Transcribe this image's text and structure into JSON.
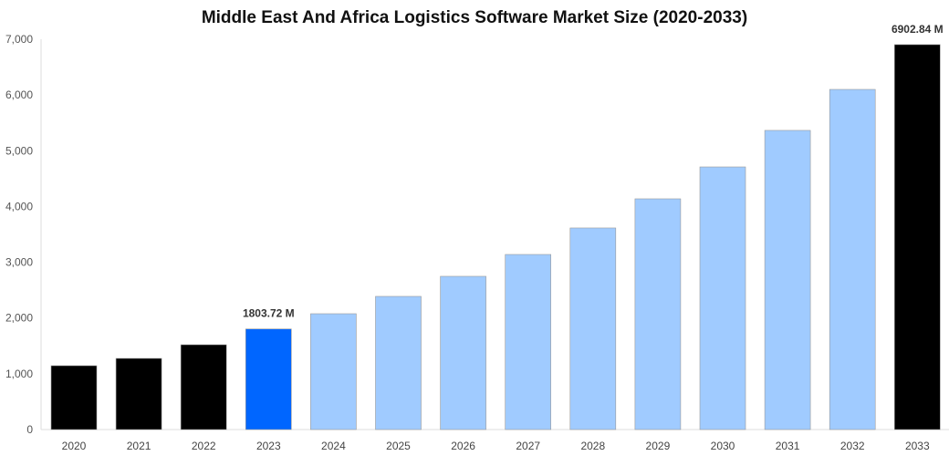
{
  "chart_data": {
    "type": "bar",
    "title": "Middle East And Africa Logistics Software Market Size (2020-2033)",
    "xlabel": "",
    "ylabel": "",
    "ylim": [
      0,
      7000
    ],
    "yticks": [
      "0",
      "1,000",
      "2,000",
      "3,000",
      "4,000",
      "5,000",
      "6,000",
      "7,000"
    ],
    "grid": false,
    "categories": [
      "2020",
      "2021",
      "2022",
      "2023",
      "2024",
      "2025",
      "2026",
      "2027",
      "2028",
      "2029",
      "2030",
      "2031",
      "2032",
      "2033"
    ],
    "values": [
      1145,
      1276,
      1521,
      1803.72,
      2077,
      2388,
      2748,
      3140,
      3615,
      4138,
      4710,
      5365,
      6100,
      6902.84
    ],
    "colors": [
      "#000000",
      "#000000",
      "#000000",
      "#0066ff",
      "#a0cbff",
      "#a0cbff",
      "#a0cbff",
      "#a0cbff",
      "#a0cbff",
      "#a0cbff",
      "#a0cbff",
      "#a0cbff",
      "#a0cbff",
      "#000000"
    ],
    "data_labels": {
      "3": "1803.72 M",
      "13": "6902.84 M"
    }
  }
}
